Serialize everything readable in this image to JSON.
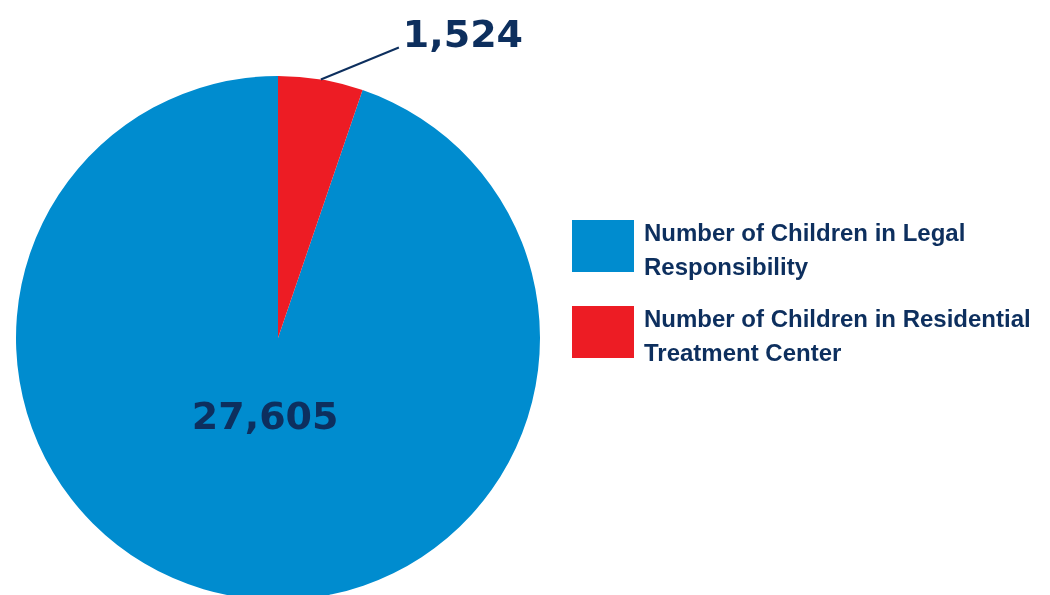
{
  "chart_data": {
    "type": "pie",
    "categories": [
      "Number of Children in Legal Responsibility",
      "Number of Children in Residential Treatment Center"
    ],
    "values": [
      27605,
      1524
    ],
    "value_labels": [
      "27,605",
      "1,524"
    ],
    "colors": [
      "#008ccf",
      "#ed1c24"
    ],
    "legend": "right"
  }
}
